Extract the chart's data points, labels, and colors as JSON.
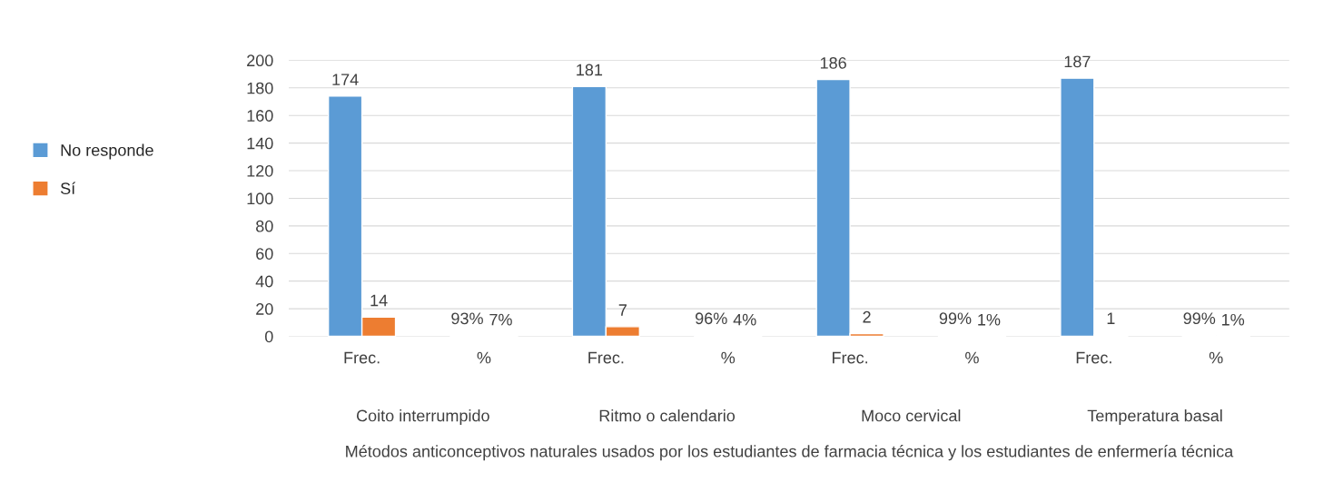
{
  "chart_data": {
    "type": "bar",
    "categories": [
      "Frec.",
      "%",
      "Frec.",
      "%",
      "Frec.",
      "%",
      "Frec.",
      "%"
    ],
    "series": [
      {
        "name": "No responde",
        "color": "#5b9bd5",
        "values": [
          174,
          0.93,
          181,
          0.96,
          186,
          0.99,
          187,
          0.99
        ],
        "value_labels": [
          "174",
          "93%",
          "181",
          "96%",
          "186",
          "99%",
          "187",
          "99%"
        ]
      },
      {
        "name": "Sí",
        "color": "#ed7d31",
        "values": [
          14,
          0.07,
          7,
          0.04,
          2,
          0.01,
          1,
          0.01
        ],
        "value_labels": [
          "14",
          "7%",
          "7",
          "4%",
          "2",
          "1%",
          "1",
          "1%"
        ]
      }
    ],
    "annotations": [
      "Coito interrumpido",
      "Ritmo o calendario",
      "Moco cervical",
      "Temperatura basal"
    ],
    "xlabel": "Métodos anticonceptivos naturales usados por los estudiantes de farmacia técnica y los estudiantes de enfermería técnica",
    "ylim": [
      0,
      200
    ],
    "yticks": [
      0,
      20,
      40,
      60,
      80,
      100,
      120,
      140,
      160,
      180,
      200
    ],
    "grid": "y",
    "legend": "left"
  }
}
